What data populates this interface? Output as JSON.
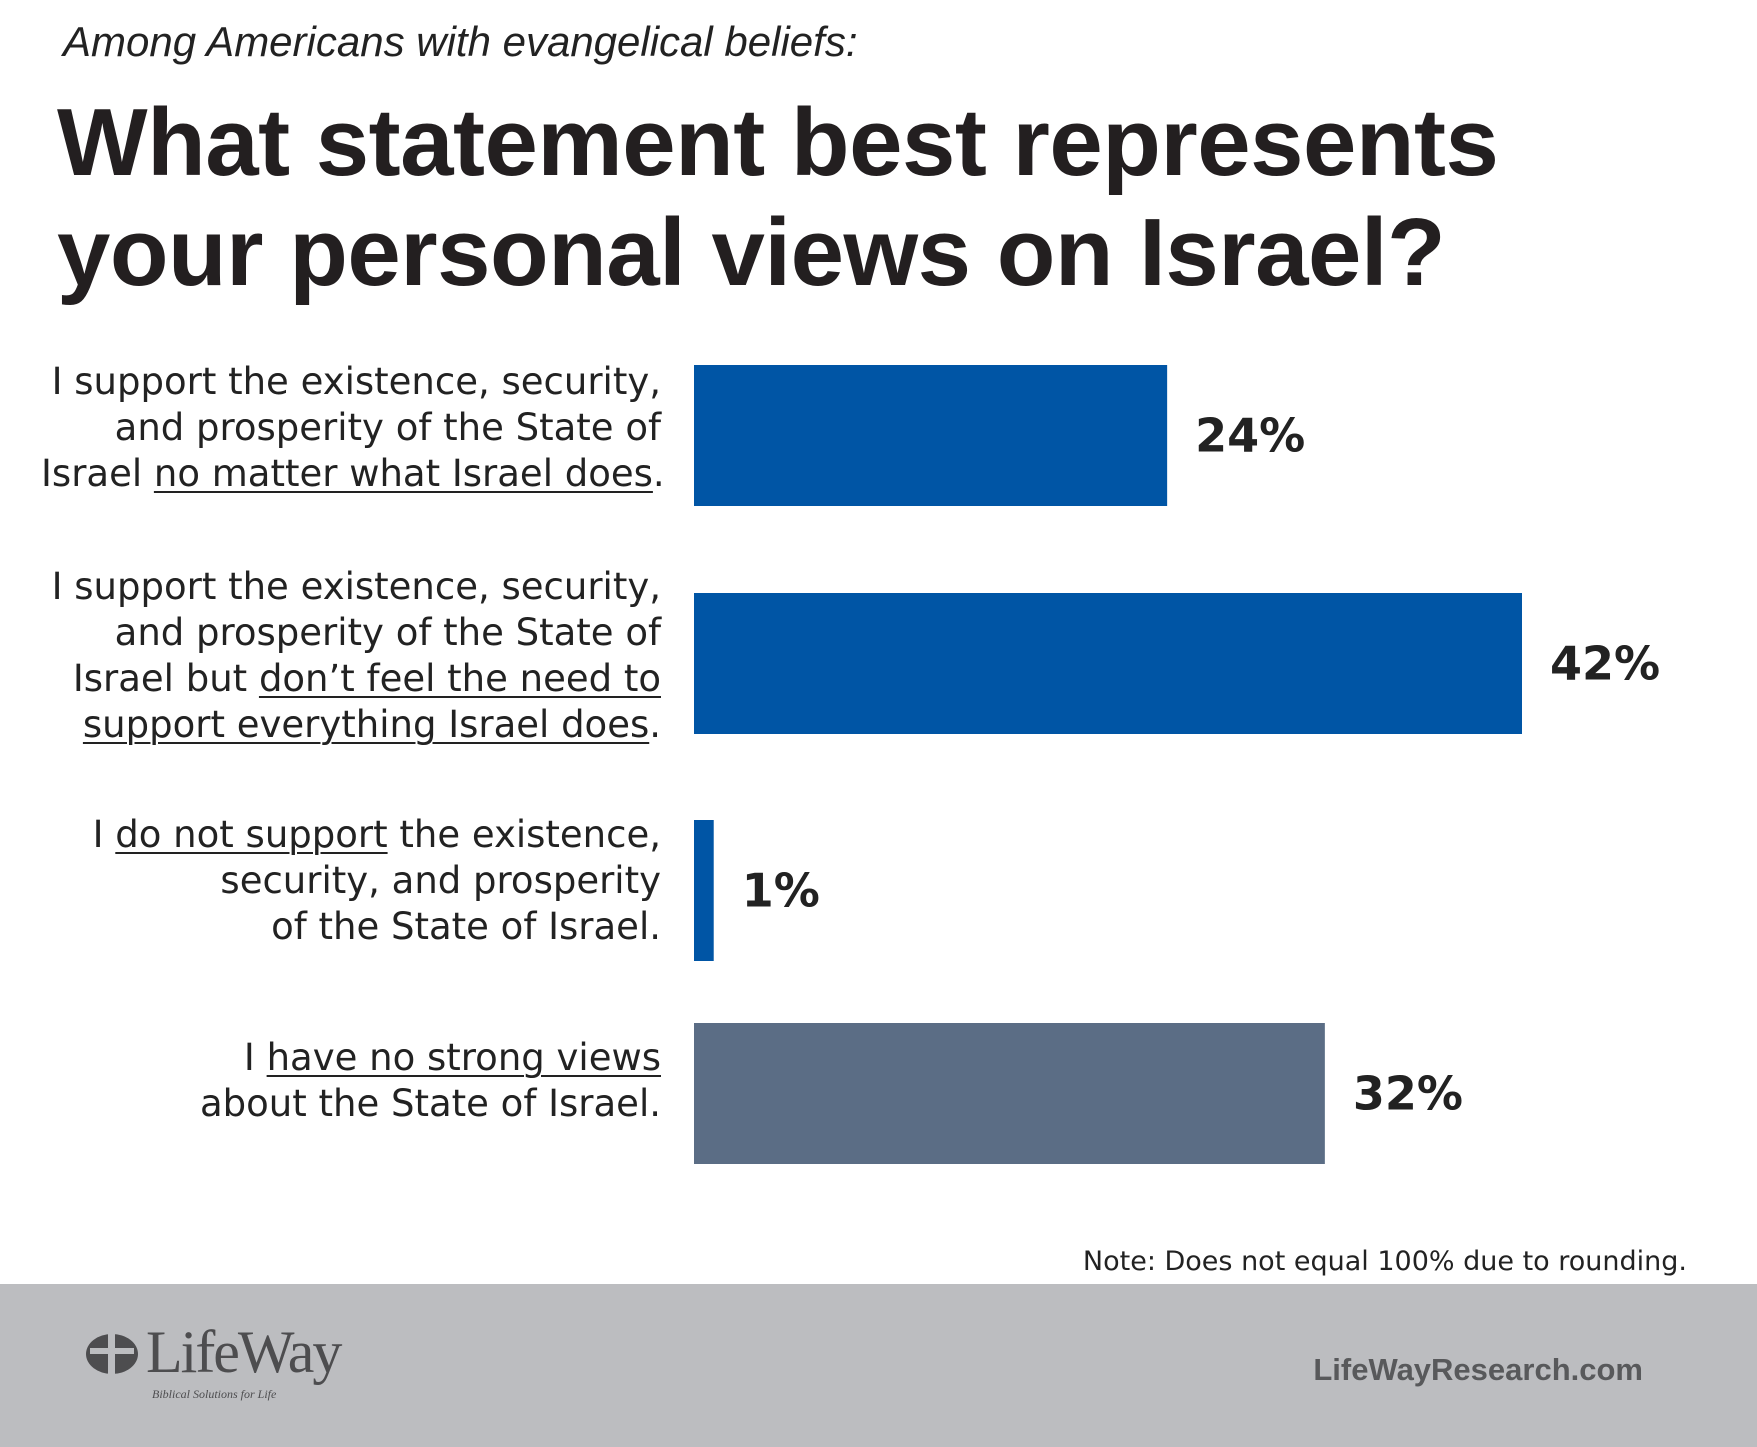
{
  "header": {
    "subtitle": "Among Americans with evangelical beliefs:",
    "title_line1": "What statement best represents",
    "title_line2": "your personal views on Israel?"
  },
  "chart_data": {
    "type": "bar",
    "orientation": "horizontal",
    "title": "What statement best represents your personal views on Israel?",
    "subtitle": "Among Americans with evangelical beliefs:",
    "categories": [
      "I support the existence, security, and prosperity of the State of Israel no matter what Israel does.",
      "I support the existence, security, and prosperity of the State of Israel but don’t feel the need to support everything Israel does.",
      "I do not support the existence, security, and prosperity of the State of Israel.",
      "I have no strong views about the State of Israel."
    ],
    "values": [
      24,
      42,
      1,
      32
    ],
    "value_labels": [
      "24%",
      "42%",
      "1%",
      "32%"
    ],
    "colors": [
      "#0055a5",
      "#0055a5",
      "#0055a5",
      "#5b6d85"
    ],
    "xlim": [
      0,
      42
    ],
    "grid": false,
    "legend": "none"
  },
  "category_lines": [
    [
      [
        {
          "t": "I support the existence, security,"
        }
      ],
      [
        {
          "t": "and prosperity of the State of"
        }
      ],
      [
        {
          "t": "Israel "
        },
        {
          "t": "no matter what Israel does",
          "u": true
        },
        {
          "t": "."
        }
      ]
    ],
    [
      [
        {
          "t": "I support the existence, security,"
        }
      ],
      [
        {
          "t": "and prosperity of the State of"
        }
      ],
      [
        {
          "t": "Israel but "
        },
        {
          "t": "don’t feel the need to",
          "u": true
        }
      ],
      [
        {
          "t": "support everything Israel does",
          "u": true
        },
        {
          "t": "."
        }
      ]
    ],
    [
      [
        {
          "t": "I "
        },
        {
          "t": "do not support",
          "u": true
        },
        {
          "t": " the existence,"
        }
      ],
      [
        {
          "t": "security, and prosperity"
        }
      ],
      [
        {
          "t": "of the State of Israel."
        }
      ]
    ],
    [
      [
        {
          "t": "I "
        },
        {
          "t": "have no strong views",
          "u": true
        }
      ],
      [
        {
          "t": "about the State of Israel."
        }
      ]
    ]
  ],
  "note": "Note: Does not equal 100% due to rounding.",
  "footer": {
    "logo_text": "LifeWay",
    "logo_tagline": "Biblical Solutions for Life",
    "website": "LifeWayResearch.com"
  }
}
